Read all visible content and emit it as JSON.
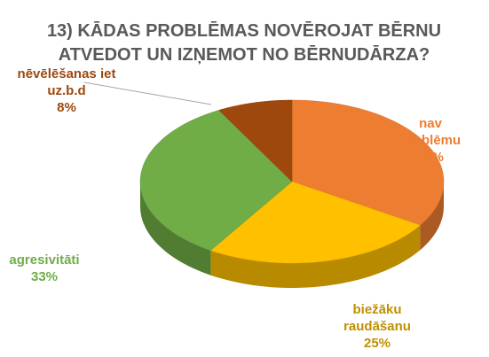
{
  "chart_data": {
    "type": "pie",
    "title": "13) KĀDAS PROBLĒMAS NOVĒROJAT BĒRNU ATVEDOT UN IZŅEMOT NO BĒRNUDĀRZA?",
    "categories": [
      "nav problēmu",
      "biežāku raudāšanu",
      "agresivitāti",
      "nēvēlēšanas iet uz.b.d"
    ],
    "values": [
      34,
      25,
      33,
      8
    ],
    "value_labels": [
      "34%",
      "25%",
      "33%",
      "8%"
    ],
    "colors": [
      "#ED7D31",
      "#FFC000",
      "#70AD47",
      "#9E480E"
    ],
    "label_colors": [
      "#ED7D31",
      "#BF9000",
      "#70AD47",
      "#9E480E"
    ]
  }
}
